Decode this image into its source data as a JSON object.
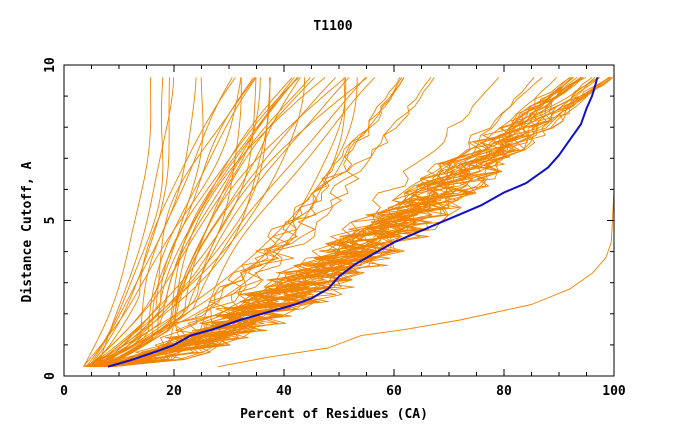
{
  "chart_data": {
    "type": "line",
    "title": "T1100",
    "xlabel": "Percent of Residues (CA)",
    "ylabel": "Distance Cutoff, A",
    "xlim": [
      0,
      100
    ],
    "ylim": [
      0,
      10
    ],
    "xticks": [
      "0",
      "20",
      "40",
      "60",
      "80",
      "100"
    ],
    "yticks": [
      "0",
      "5",
      "10"
    ],
    "grid": false,
    "legend": "none",
    "colors": {
      "models": "#f08400",
      "highlight": "#1010c8"
    },
    "highlight": {
      "x": [
        8,
        12,
        17,
        20,
        23,
        27,
        32,
        38,
        42,
        45,
        48,
        50,
        53,
        56,
        60,
        64,
        68,
        72,
        76,
        80,
        84,
        88,
        90,
        92,
        94,
        95,
        96,
        97
      ],
      "y": [
        0.3,
        0.5,
        0.8,
        1.0,
        1.3,
        1.5,
        1.8,
        2.1,
        2.3,
        2.5,
        2.8,
        3.2,
        3.6,
        3.9,
        4.3,
        4.6,
        4.9,
        5.2,
        5.5,
        5.9,
        6.2,
        6.7,
        7.1,
        7.6,
        8.1,
        8.6,
        9.0,
        9.6
      ]
    },
    "outlier": {
      "x": [
        28,
        37,
        48,
        54,
        62,
        72,
        85,
        92,
        96,
        98.5,
        99.5,
        100,
        100
      ],
      "y": [
        0.3,
        0.6,
        0.9,
        1.3,
        1.5,
        1.8,
        2.3,
        2.8,
        3.3,
        3.8,
        4.3,
        6,
        9.6
      ]
    },
    "families": [
      {
        "kind": "steep",
        "count": 16,
        "xStart": [
          3.5,
          7
        ],
        "xEnd": [
          12,
          55
        ],
        "curv": [
          1.4,
          3.0
        ]
      },
      {
        "kind": "s",
        "count": 20,
        "xStart": [
          4,
          8
        ],
        "xEnd": [
          30,
          57
        ],
        "curv": [
          1.2,
          2.2
        ],
        "knee": [
          0.08,
          0.25
        ]
      },
      {
        "kind": "conv",
        "count": 30,
        "xStart": [
          4.5,
          9
        ],
        "xEnd": [
          91,
          100
        ],
        "curv": [
          0.7,
          1.3
        ],
        "pBias": [
          0.45,
          0.78
        ]
      },
      {
        "kind": "mid",
        "count": 10,
        "xStart": [
          5,
          8
        ],
        "xEnd": [
          60,
          90
        ],
        "curv": [
          0.9,
          1.5
        ],
        "pBias": [
          0.45,
          0.65
        ]
      }
    ]
  }
}
